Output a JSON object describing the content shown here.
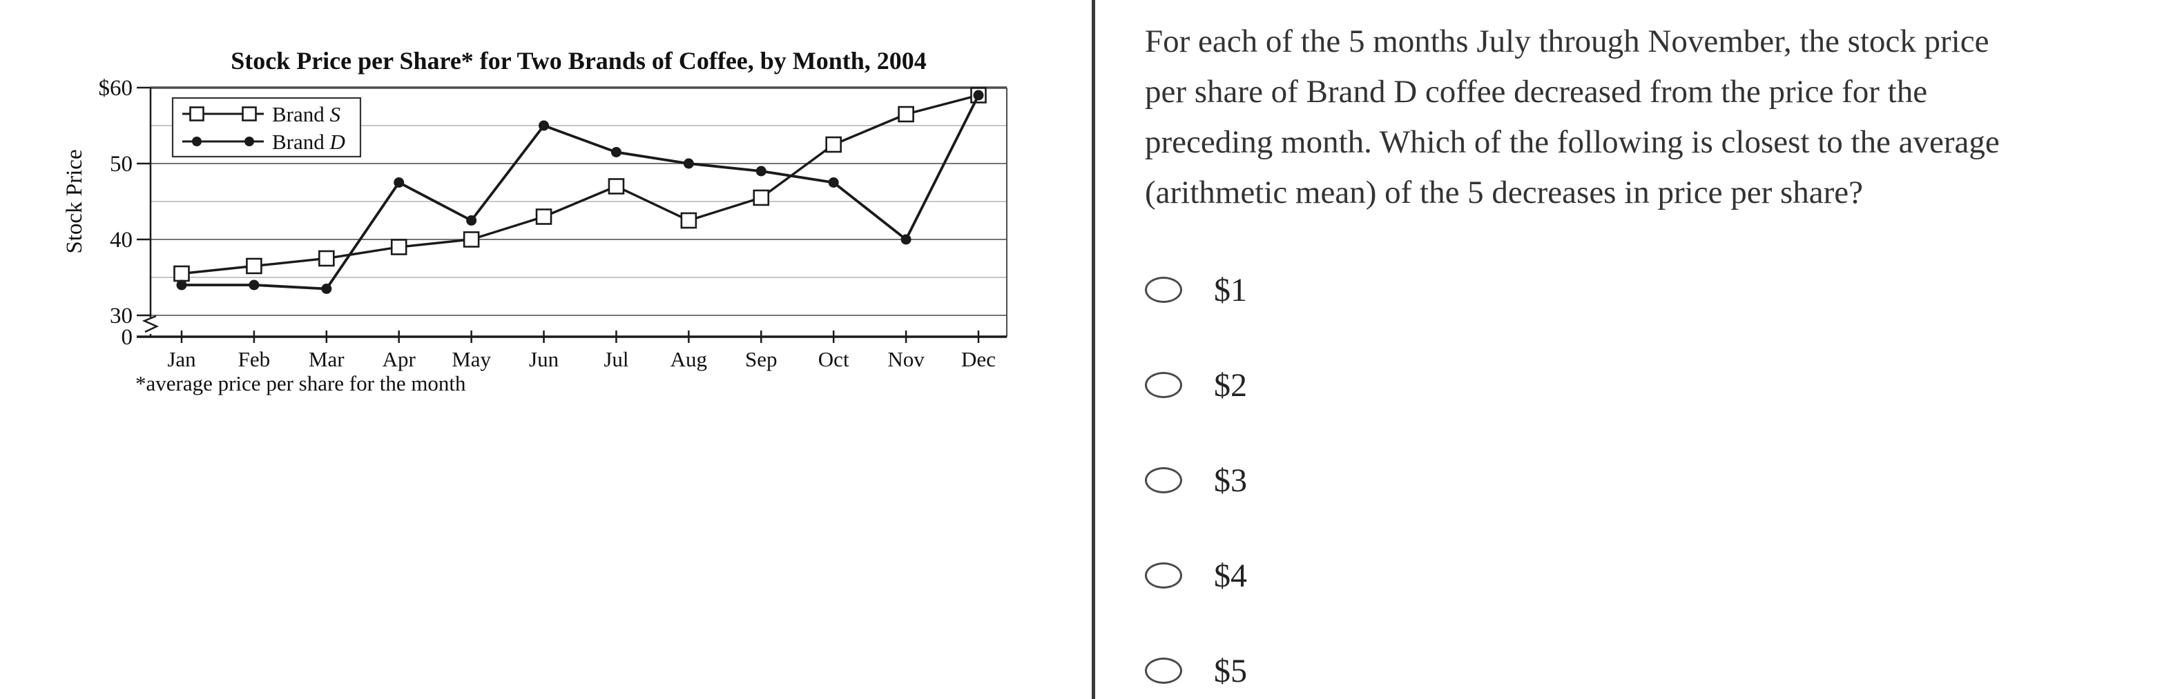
{
  "colors": {
    "chart_ink": "#1a1a1a",
    "frame": "#4d4d4d",
    "grid_light": "#b3b3b3",
    "grid_dark": "#757575",
    "divider": "#3a3a3a",
    "question_text": "#333333"
  },
  "chart_data": {
    "type": "line",
    "title": "Stock Price per Share* for Two Brands of Coffee, by Month, 2004",
    "ylabel": "Stock Price",
    "footnote": "*average price per share for the month",
    "categories": [
      "Jan",
      "Feb",
      "Mar",
      "Apr",
      "May",
      "Jun",
      "Jul",
      "Aug",
      "Sep",
      "Oct",
      "Nov",
      "Dec"
    ],
    "series": [
      {
        "name": "Brand S",
        "marker": "open-square",
        "values": [
          35.5,
          36.5,
          37.5,
          39,
          40,
          43,
          47,
          42.5,
          45.5,
          52.5,
          56.5,
          59
        ]
      },
      {
        "name": "Brand D",
        "marker": "filled-circle",
        "values": [
          34,
          34,
          33.5,
          47.5,
          42.5,
          55,
          51.5,
          50,
          49,
          47.5,
          40,
          59
        ]
      }
    ],
    "y_axis": {
      "tick_labels": [
        "$60",
        "50",
        "40",
        "30",
        "0"
      ],
      "tick_values": [
        60,
        50,
        40,
        30,
        0
      ],
      "gridline_values": [
        55,
        50,
        45,
        40,
        35,
        30
      ],
      "top_value": 60,
      "axis_break_between": [
        30,
        0
      ]
    },
    "legend_position": "top-left",
    "grid": "horizontal"
  },
  "question": {
    "lines": [
      "For each of the 5 months July through November, the stock price",
      "per share of Brand D coffee decreased from the price for the",
      "preceding month. Which of the following is closest to the average",
      "(arithmetic mean) of the 5 decreases in price per share?"
    ]
  },
  "options": [
    {
      "label": "$1"
    },
    {
      "label": "$2"
    },
    {
      "label": "$3"
    },
    {
      "label": "$4"
    },
    {
      "label": "$5"
    }
  ]
}
